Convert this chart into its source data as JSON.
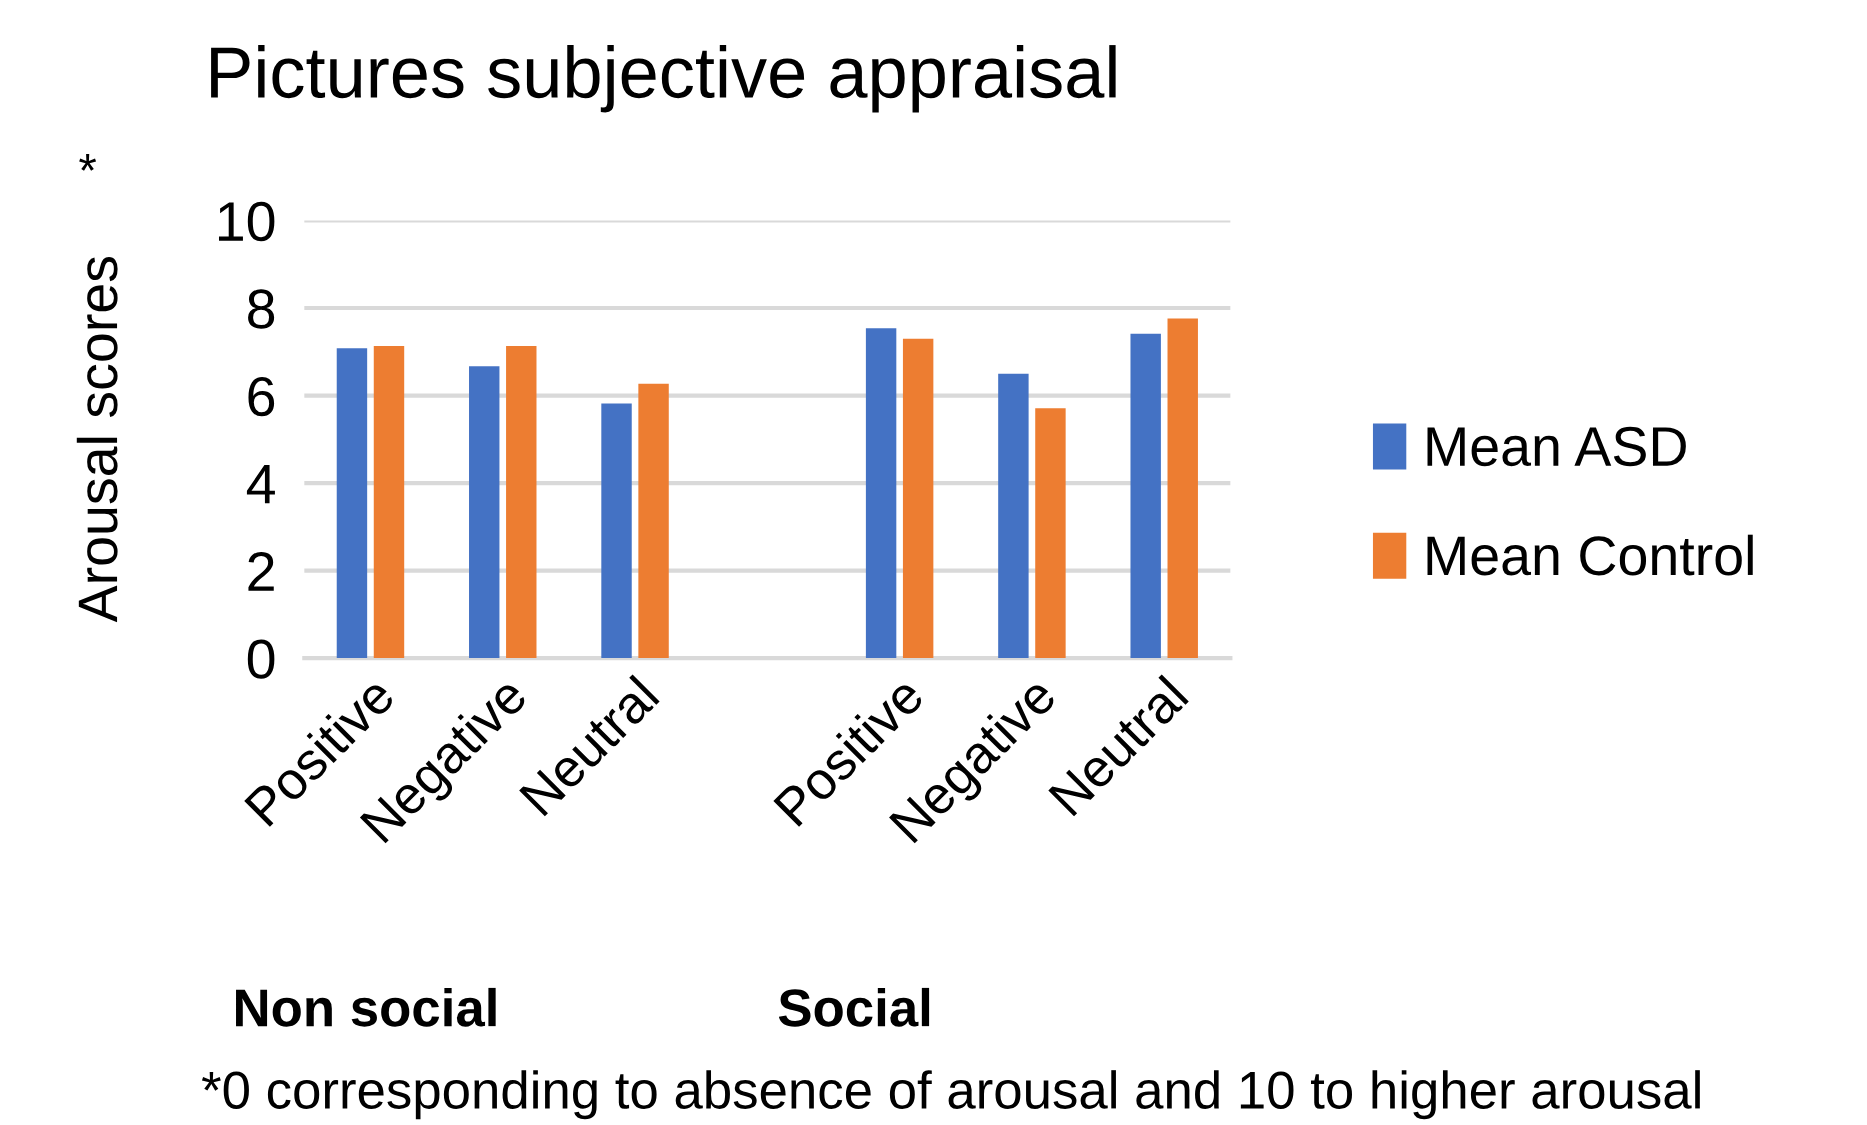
{
  "chart_data": {
    "type": "bar",
    "title": "Pictures subjective appraisal",
    "ylabel": "Arousal scores",
    "categories": [
      "Positive",
      "Negative",
      "Neutral",
      null,
      "Positive",
      "Negative",
      "Neutral"
    ],
    "series": [
      {
        "name": "Mean ASD",
        "color": "#4472c4",
        "values": [
          7.08,
          6.67,
          5.82,
          null,
          7.54,
          6.5,
          7.41
        ]
      },
      {
        "name": "Mean Control",
        "color": "#ed7d31",
        "values": [
          7.13,
          7.13,
          6.27,
          null,
          7.3,
          5.71,
          7.76
        ]
      }
    ],
    "ylim": [
      0,
      10
    ],
    "yticks": [
      0,
      2,
      4,
      6,
      8,
      10
    ],
    "grid": "y",
    "legend": "right",
    "annotations": [
      "*",
      "Non social",
      "Social",
      "*0 corresponding to absence of arousal and 10 to higher arousal"
    ]
  }
}
